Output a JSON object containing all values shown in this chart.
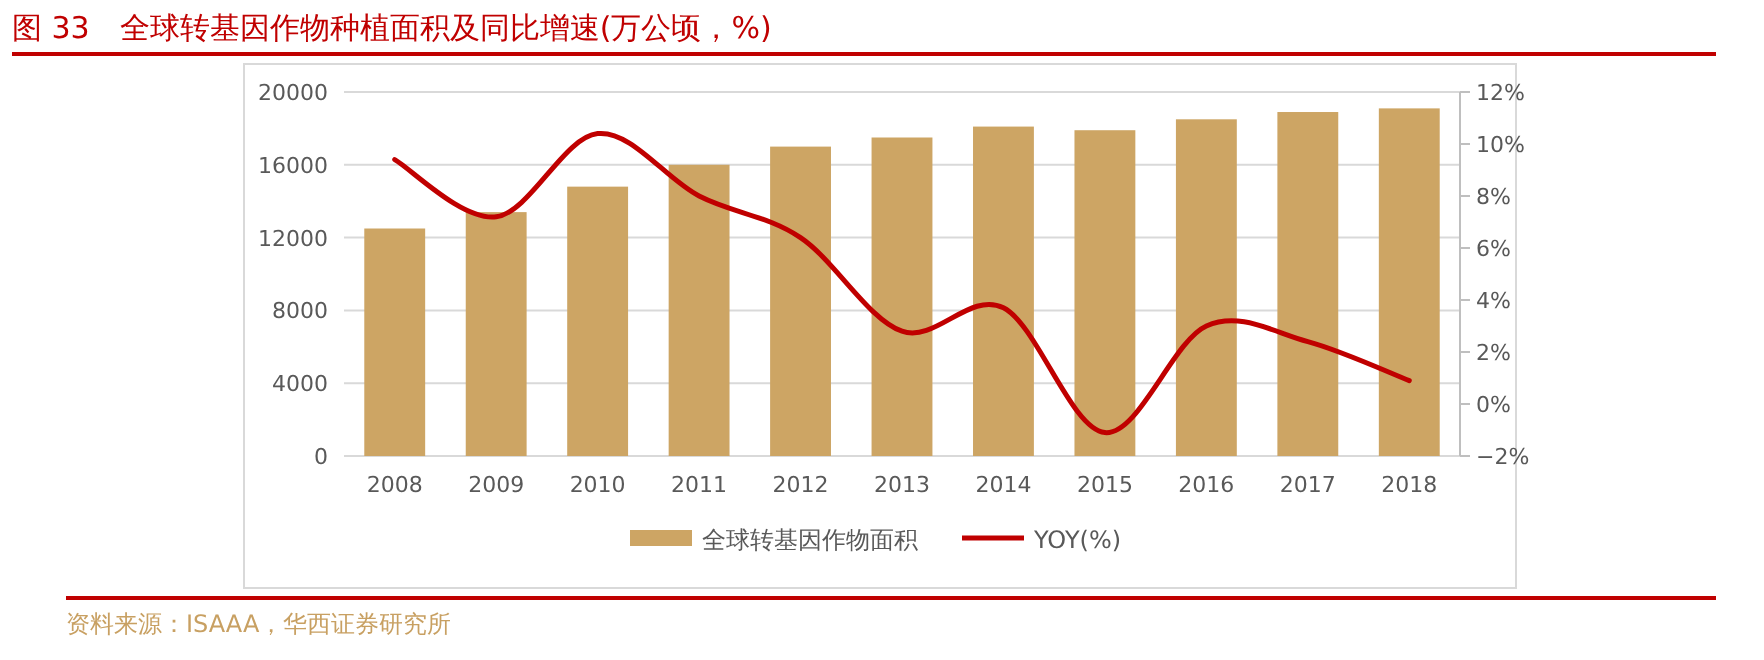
{
  "chart_data": {
    "type": "bar",
    "title": "图 33　全球转基因作物种植面积及同比增速(万公顷，%)",
    "categories": [
      "2008",
      "2009",
      "2010",
      "2011",
      "2012",
      "2013",
      "2014",
      "2015",
      "2016",
      "2017",
      "2018"
    ],
    "series": [
      {
        "name": "全球转基因作物面积",
        "color": "#cda564",
        "values": [
          12500,
          13400,
          14800,
          16000,
          17000,
          17500,
          18100,
          17900,
          18500,
          18900,
          19100
        ]
      },
      {
        "name": "YOY(%)",
        "type": "line",
        "axis": "y2",
        "color": "#c00000",
        "values": [
          9.4,
          7.2,
          10.4,
          8.0,
          6.4,
          2.8,
          3.7,
          -1.1,
          3.0,
          2.4,
          0.9
        ]
      }
    ],
    "ylim": [
      0,
      20000
    ],
    "yticks": [
      0,
      4000,
      8000,
      12000,
      16000,
      20000
    ],
    "y2lim": [
      -2,
      12
    ],
    "y2ticks": [
      {
        "value": -2,
        "label": "−2%"
      },
      {
        "value": 0,
        "label": "0%"
      },
      {
        "value": 2,
        "label": "2%"
      },
      {
        "value": 4,
        "label": "4%"
      },
      {
        "value": 6,
        "label": "6%"
      },
      {
        "value": 8,
        "label": "8%"
      },
      {
        "value": 10,
        "label": "10%"
      },
      {
        "value": 12,
        "label": "12%"
      }
    ],
    "grid": "y",
    "legend": "bottom",
    "marker": "none",
    "annotations": [
      "资料来源：ISAAA，华西证券研究所"
    ]
  }
}
